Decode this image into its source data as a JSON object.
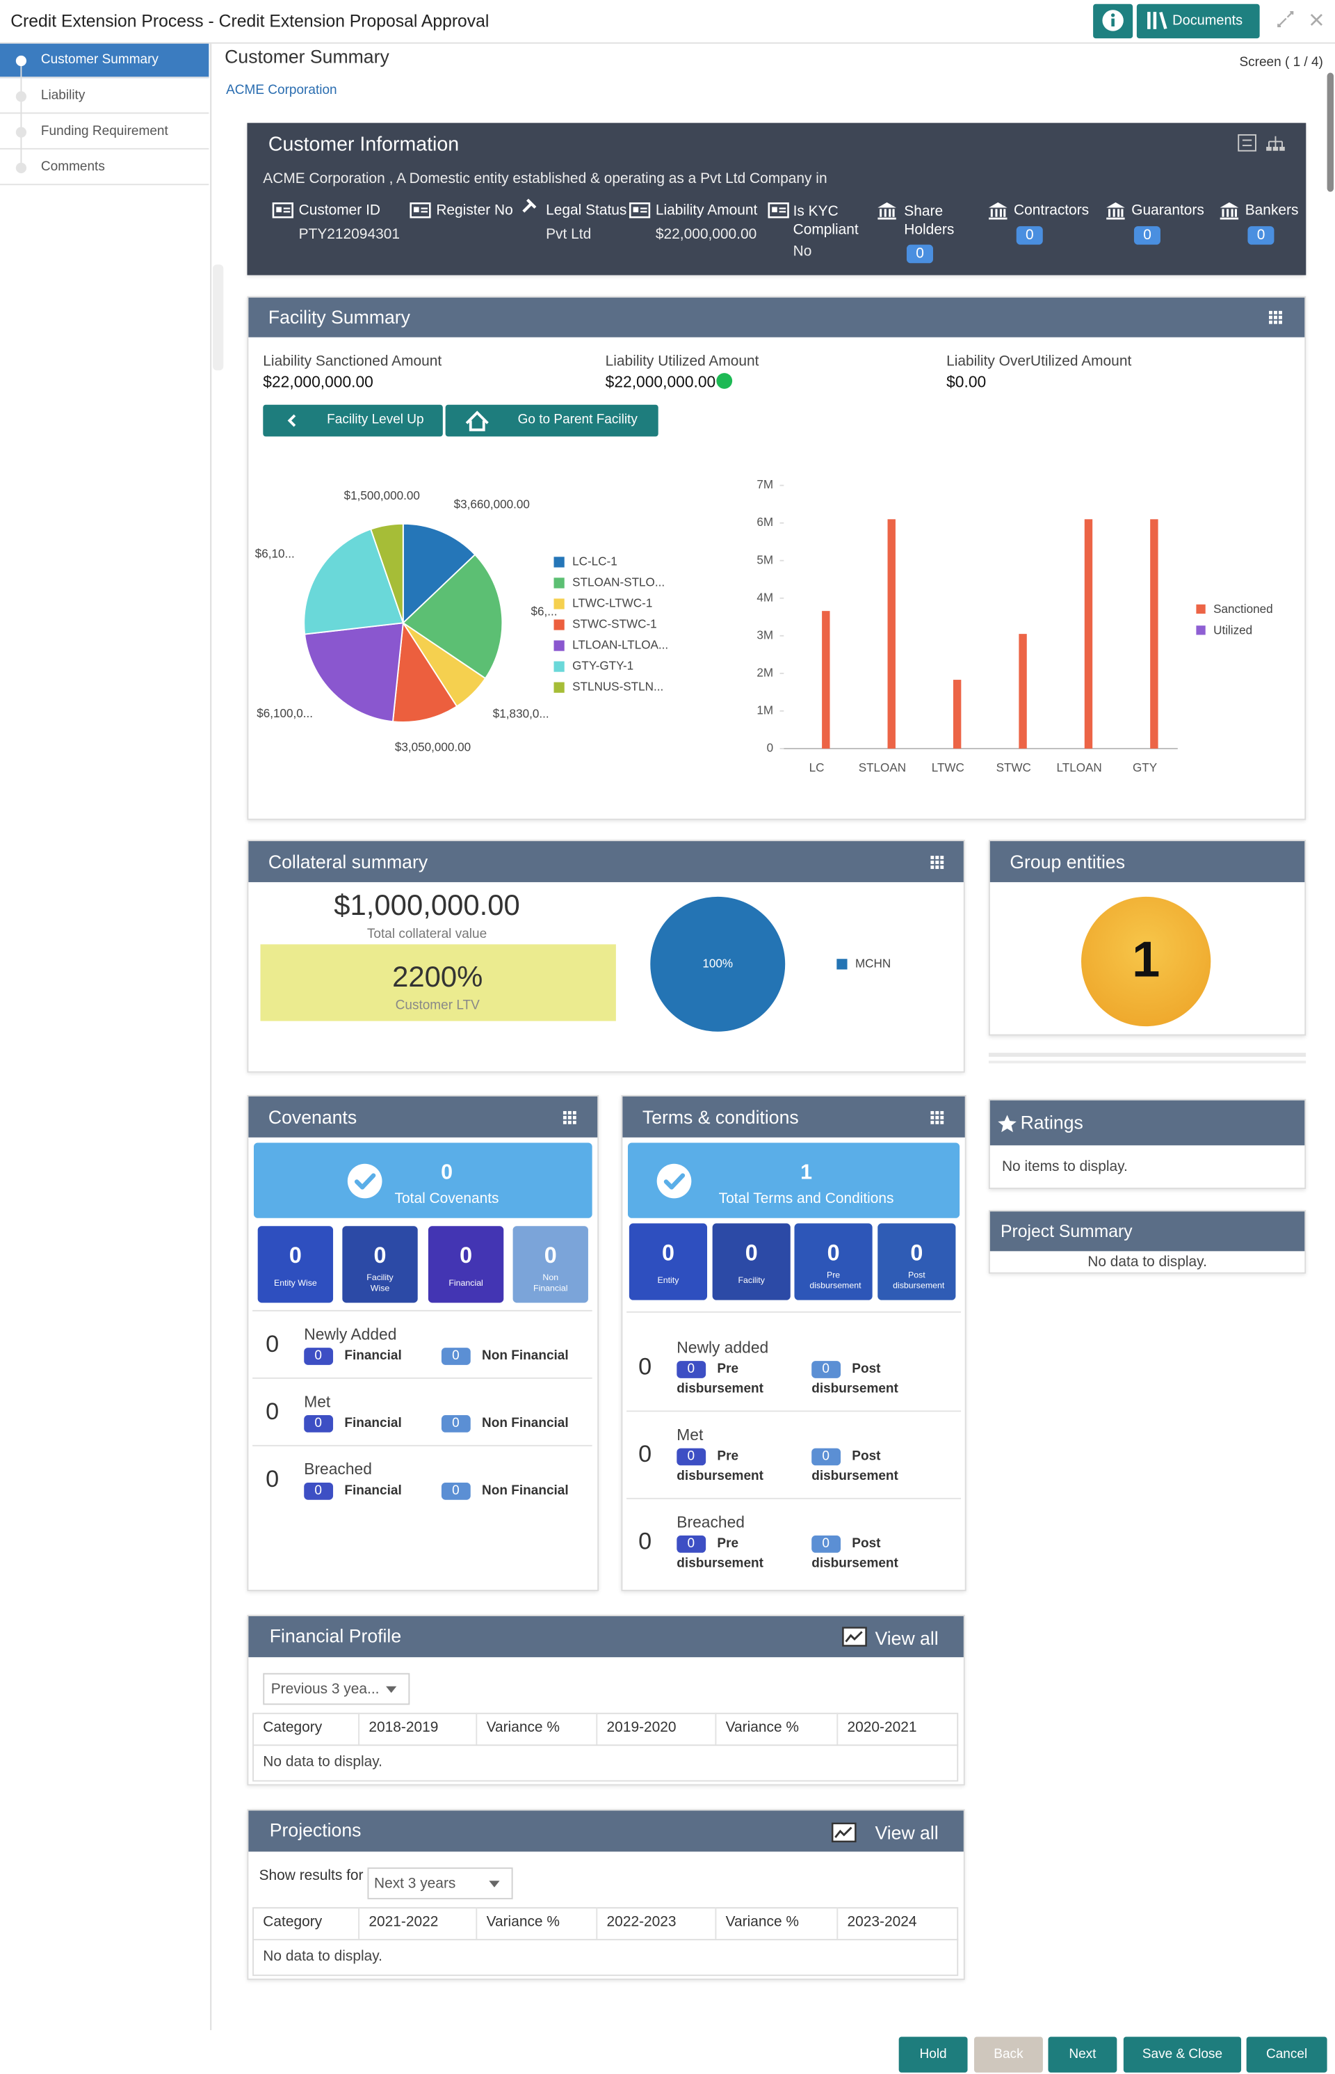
{
  "header": {
    "title": "Credit Extension Process - Credit Extension Proposal Approval",
    "documents": "Documents"
  },
  "sidebar": {
    "items": [
      "Customer Summary",
      "Liability",
      "Funding Requirement",
      "Comments"
    ]
  },
  "page": {
    "title": "Customer Summary",
    "customer": "ACME Corporation",
    "screen": "Screen ( 1 / 4)"
  },
  "customer_info": {
    "title": "Customer Information",
    "description": "ACME Corporation , A Domestic entity established & operating as a Pvt Ltd Company in",
    "fields": [
      {
        "label": "Customer ID",
        "value": "PTY212094301"
      },
      {
        "label": "Register No"
      },
      {
        "label": "Legal Status",
        "value": "Pvt Ltd"
      },
      {
        "label": "Liability Amount",
        "value": "$22,000,000.00"
      },
      {
        "label": "Is KYC Compliant",
        "value": "No"
      },
      {
        "label": "Share Holders",
        "count": 0
      },
      {
        "label": "Contractors",
        "count": 0
      },
      {
        "label": "Guarantors",
        "count": 0
      },
      {
        "label": "Bankers",
        "count": 0
      }
    ]
  },
  "facility_summary": {
    "title": "Facility Summary",
    "amounts": [
      {
        "label": "Liability Sanctioned Amount",
        "value": "$22,000,000.00"
      },
      {
        "label": "Liability Utilized Amount",
        "value": "$22,000,000.00"
      },
      {
        "label": "Liability OverUtilized Amount",
        "value": "$0.00"
      }
    ],
    "buttons": [
      "Facility Level Up",
      "Go to Parent Facility"
    ],
    "pie_chart": {
      "type": "pie",
      "categories": [
        "LC-LC-1",
        "STLOAN-STLO...",
        "LTWC-LTWC-1",
        "STWC-STWC-1",
        "LTLOAN-LTLOA...",
        "GTY-GTY-1",
        "STLNUS-STLN..."
      ],
      "values": [
        3660000,
        6100000,
        1830000,
        3050000,
        6100000,
        6100000,
        1500000
      ],
      "value_labels": [
        "$3,660,000.00",
        "$6,...",
        "$1,830,0...",
        "$3,050,000.00",
        "$6,100,0...",
        "$6,10...",
        "$1,500,000.00"
      ],
      "colors": [
        "#2576b8",
        "#5cbf73",
        "#f5d04f",
        "#ec5f3e",
        "#8a57cf",
        "#6ad8d9",
        "#a6bd37"
      ]
    },
    "bar_chart": {
      "type": "bar",
      "categories": [
        "LC",
        "STLOAN",
        "LTWC",
        "STWC",
        "LTLOAN",
        "GTY"
      ],
      "series": [
        {
          "name": "Sanctioned",
          "color": "#ec6446",
          "values": [
            3660000,
            6100000,
            1830000,
            3050000,
            6100000,
            6100000
          ]
        },
        {
          "name": "Utilized",
          "color": "#8e5fd3",
          "values": [
            0,
            0,
            0,
            0,
            0,
            0
          ]
        }
      ],
      "ylim": [
        0,
        7000000
      ],
      "yticks": [
        0,
        {
          "value": 1000000,
          "label": "1M"
        },
        {
          "value": 2000000,
          "label": "2M"
        },
        {
          "value": 3000000,
          "label": "3M"
        },
        {
          "value": 4000000,
          "label": "4M"
        },
        {
          "value": 5000000,
          "label": "5M"
        },
        {
          "value": 6000000,
          "label": "6M"
        },
        {
          "value": 7000000,
          "label": "7M"
        }
      ]
    }
  },
  "collateral_summary": {
    "title": "Collateral summary",
    "total": "$1,000,000.00",
    "total_label": "Total collateral value",
    "ltv": "2200%",
    "ltv_label": "Customer LTV",
    "chart": {
      "type": "pie",
      "categories": [
        "MCHN"
      ],
      "values": [
        100
      ],
      "value_labels": [
        "100%"
      ],
      "colors": [
        "#2474b4"
      ]
    }
  },
  "group_entities": {
    "title": "Group entities",
    "count": 1
  },
  "covenants": {
    "title": "Covenants",
    "total": 0,
    "total_label": "Total Covenants",
    "tiles": [
      {
        "count": 0,
        "label": "Entity Wise"
      },
      {
        "count": 0,
        "label": "Facility Wise"
      },
      {
        "count": 0,
        "label": "Financial"
      },
      {
        "count": 0,
        "label": "Non Financial"
      }
    ],
    "rows": [
      {
        "count": 0,
        "label": "Newly Added",
        "items": [
          {
            "count": 0,
            "label": "Financial"
          },
          {
            "count": 0,
            "label": "Non Financial"
          }
        ]
      },
      {
        "count": 0,
        "label": "Met",
        "items": [
          {
            "count": 0,
            "label": "Financial"
          },
          {
            "count": 0,
            "label": "Non Financial"
          }
        ]
      },
      {
        "count": 0,
        "label": "Breached",
        "items": [
          {
            "count": 0,
            "label": "Financial"
          },
          {
            "count": 0,
            "label": "Non Financial"
          }
        ]
      }
    ]
  },
  "terms_conditions": {
    "title": "Terms & conditions",
    "total": 1,
    "total_label": "Total Terms and Conditions",
    "tiles": [
      {
        "count": 0,
        "label": "Entity"
      },
      {
        "count": 0,
        "label": "Facility"
      },
      {
        "count": 0,
        "label": "Pre disbursement"
      },
      {
        "count": 0,
        "label": "Post disbursement"
      }
    ],
    "rows": [
      {
        "count": 0,
        "label": "Newly added",
        "items": [
          {
            "count": 0,
            "label": "Pre disbursement"
          },
          {
            "count": 0,
            "label": "Post disbursement"
          }
        ]
      },
      {
        "count": 0,
        "label": "Met",
        "items": [
          {
            "count": 0,
            "label": "Pre disbursement"
          },
          {
            "count": 0,
            "label": "Post disbursement"
          }
        ]
      },
      {
        "count": 0,
        "label": "Breached",
        "items": [
          {
            "count": 0,
            "label": "Pre disbursement"
          },
          {
            "count": 0,
            "label": "Post disbursement"
          }
        ]
      }
    ]
  },
  "ratings": {
    "title": "Ratings",
    "empty": "No items to display."
  },
  "project_summary": {
    "title": "Project Summary",
    "empty": "No data to display."
  },
  "financial_profile": {
    "title": "Financial Profile",
    "view_all": "View all",
    "select": "Previous 3 yea...",
    "columns": [
      "Category",
      "2018-2019",
      "Variance %",
      "2019-2020",
      "Variance %",
      "2020-2021"
    ],
    "empty": "No data to display."
  },
  "projections": {
    "title": "Projections",
    "view_all": "View all",
    "filter_label": "Show results for",
    "select": "Next 3 years",
    "columns": [
      "Category",
      "2021-2022",
      "Variance %",
      "2022-2023",
      "Variance %",
      "2023-2024"
    ],
    "empty": "No data to display."
  },
  "footer": {
    "buttons": [
      "Hold",
      "Back",
      "Next",
      "Save & Close",
      "Cancel"
    ]
  }
}
